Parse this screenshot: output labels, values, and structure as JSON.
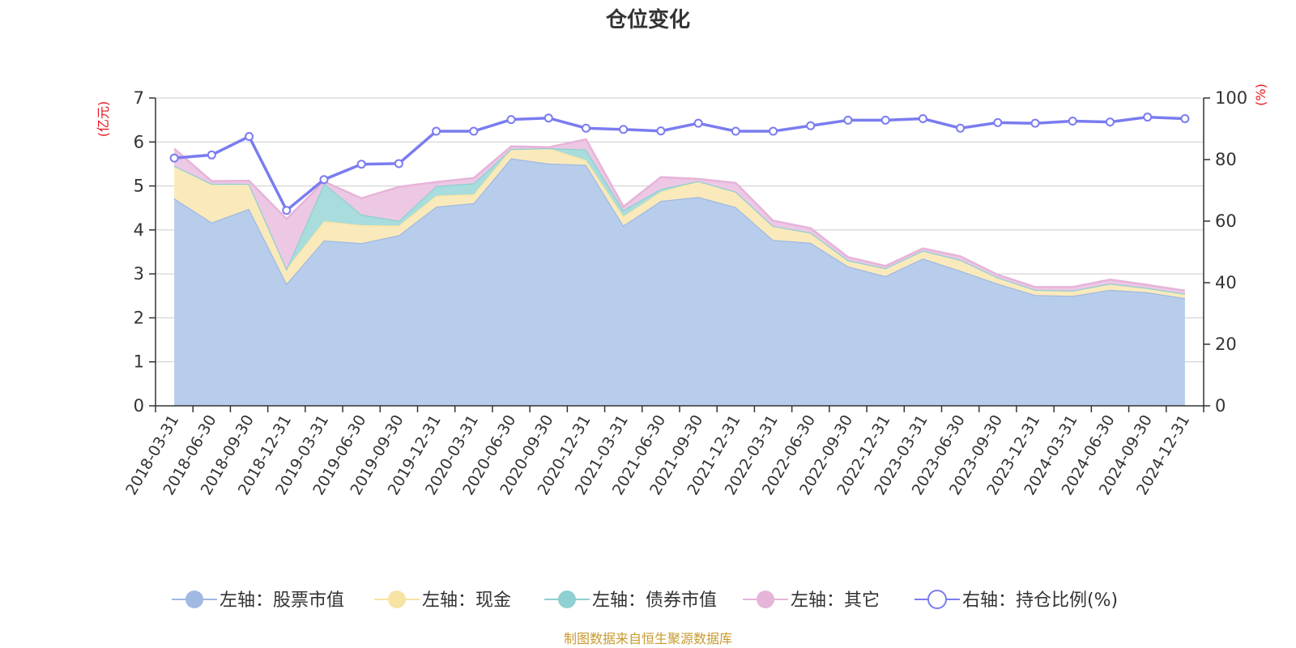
{
  "chart_data": {
    "type": "area",
    "title": "仓位变化",
    "left_unit": "(亿元)",
    "right_unit": "(%)",
    "ylim_left": [
      0,
      7
    ],
    "yticks_left": [
      "0",
      "1",
      "2",
      "3",
      "4",
      "5",
      "6",
      "7"
    ],
    "ylim_right": [
      0,
      100
    ],
    "yticks_right": [
      "0",
      "20",
      "40",
      "60",
      "80",
      "100"
    ],
    "grid": true,
    "legend_position": "bottom",
    "categories": [
      "2018-03-31",
      "2018-06-30",
      "2018-09-30",
      "2018-12-31",
      "2019-03-31",
      "2019-06-30",
      "2019-09-30",
      "2019-12-31",
      "2020-03-31",
      "2020-06-30",
      "2020-09-30",
      "2020-12-31",
      "2021-03-31",
      "2021-06-30",
      "2021-09-30",
      "2021-12-31",
      "2022-03-31",
      "2022-06-30",
      "2022-09-30",
      "2022-12-31",
      "2023-03-31",
      "2023-06-30",
      "2023-09-30",
      "2023-12-31",
      "2024-03-31",
      "2024-06-30",
      "2024-09-30",
      "2024-12-31"
    ],
    "stacked_series": [
      {
        "name": "左轴：股票市值",
        "axis": "left",
        "color": "#a0b9e2",
        "fill": "#b7cdeb",
        "values": [
          4.72,
          4.17,
          4.48,
          2.78,
          3.76,
          3.7,
          3.88,
          4.53,
          4.61,
          5.63,
          5.51,
          5.48,
          4.1,
          4.66,
          4.75,
          4.52,
          3.77,
          3.71,
          3.17,
          2.95,
          3.35,
          3.07,
          2.78,
          2.52,
          2.5,
          2.64,
          2.58,
          2.45
        ]
      },
      {
        "name": "左轴：现金",
        "axis": "left",
        "color": "#f7e3a3",
        "fill": "#faeabb",
        "values": [
          0.74,
          0.88,
          0.57,
          0.34,
          0.44,
          0.41,
          0.22,
          0.25,
          0.2,
          0.21,
          0.35,
          0.11,
          0.21,
          0.21,
          0.36,
          0.35,
          0.32,
          0.23,
          0.14,
          0.18,
          0.18,
          0.25,
          0.14,
          0.12,
          0.12,
          0.14,
          0.1,
          0.1
        ]
      },
      {
        "name": "左轴：债券市值",
        "axis": "left",
        "color": "#8fd0d2",
        "fill": "#a9dcdc",
        "values": [
          0,
          0,
          0,
          0,
          0.86,
          0.24,
          0.11,
          0.22,
          0.25,
          0,
          0,
          0.24,
          0.14,
          0.06,
          0,
          0,
          0,
          0,
          0,
          0,
          0,
          0,
          0,
          0,
          0,
          0,
          0,
          0
        ]
      },
      {
        "name": "左轴：其它",
        "axis": "left",
        "color": "#e6b4d9",
        "fill": "#ecc8e4",
        "values": [
          0.39,
          0.06,
          0.07,
          1.13,
          0.04,
          0.37,
          0.77,
          0.09,
          0.12,
          0.06,
          0.02,
          0.23,
          0.08,
          0.27,
          0.05,
          0.2,
          0.12,
          0.1,
          0.07,
          0.05,
          0.05,
          0.08,
          0.06,
          0.06,
          0.08,
          0.09,
          0.07,
          0.07
        ]
      }
    ],
    "line_series": {
      "name": "右轴：持仓比例(%)",
      "axis": "right",
      "color": "#7a7cf0",
      "values": [
        80.5,
        81.5,
        87.5,
        63.5,
        73.5,
        78.5,
        78.7,
        89.2,
        89.2,
        93.0,
        93.5,
        90.2,
        89.8,
        89.3,
        91.8,
        89.2,
        89.2,
        91.0,
        92.8,
        92.8,
        93.3,
        90.2,
        92.0,
        91.8,
        92.5,
        92.2,
        93.8,
        93.3
      ]
    },
    "source": "制图数据来自恒生聚源数据库"
  }
}
